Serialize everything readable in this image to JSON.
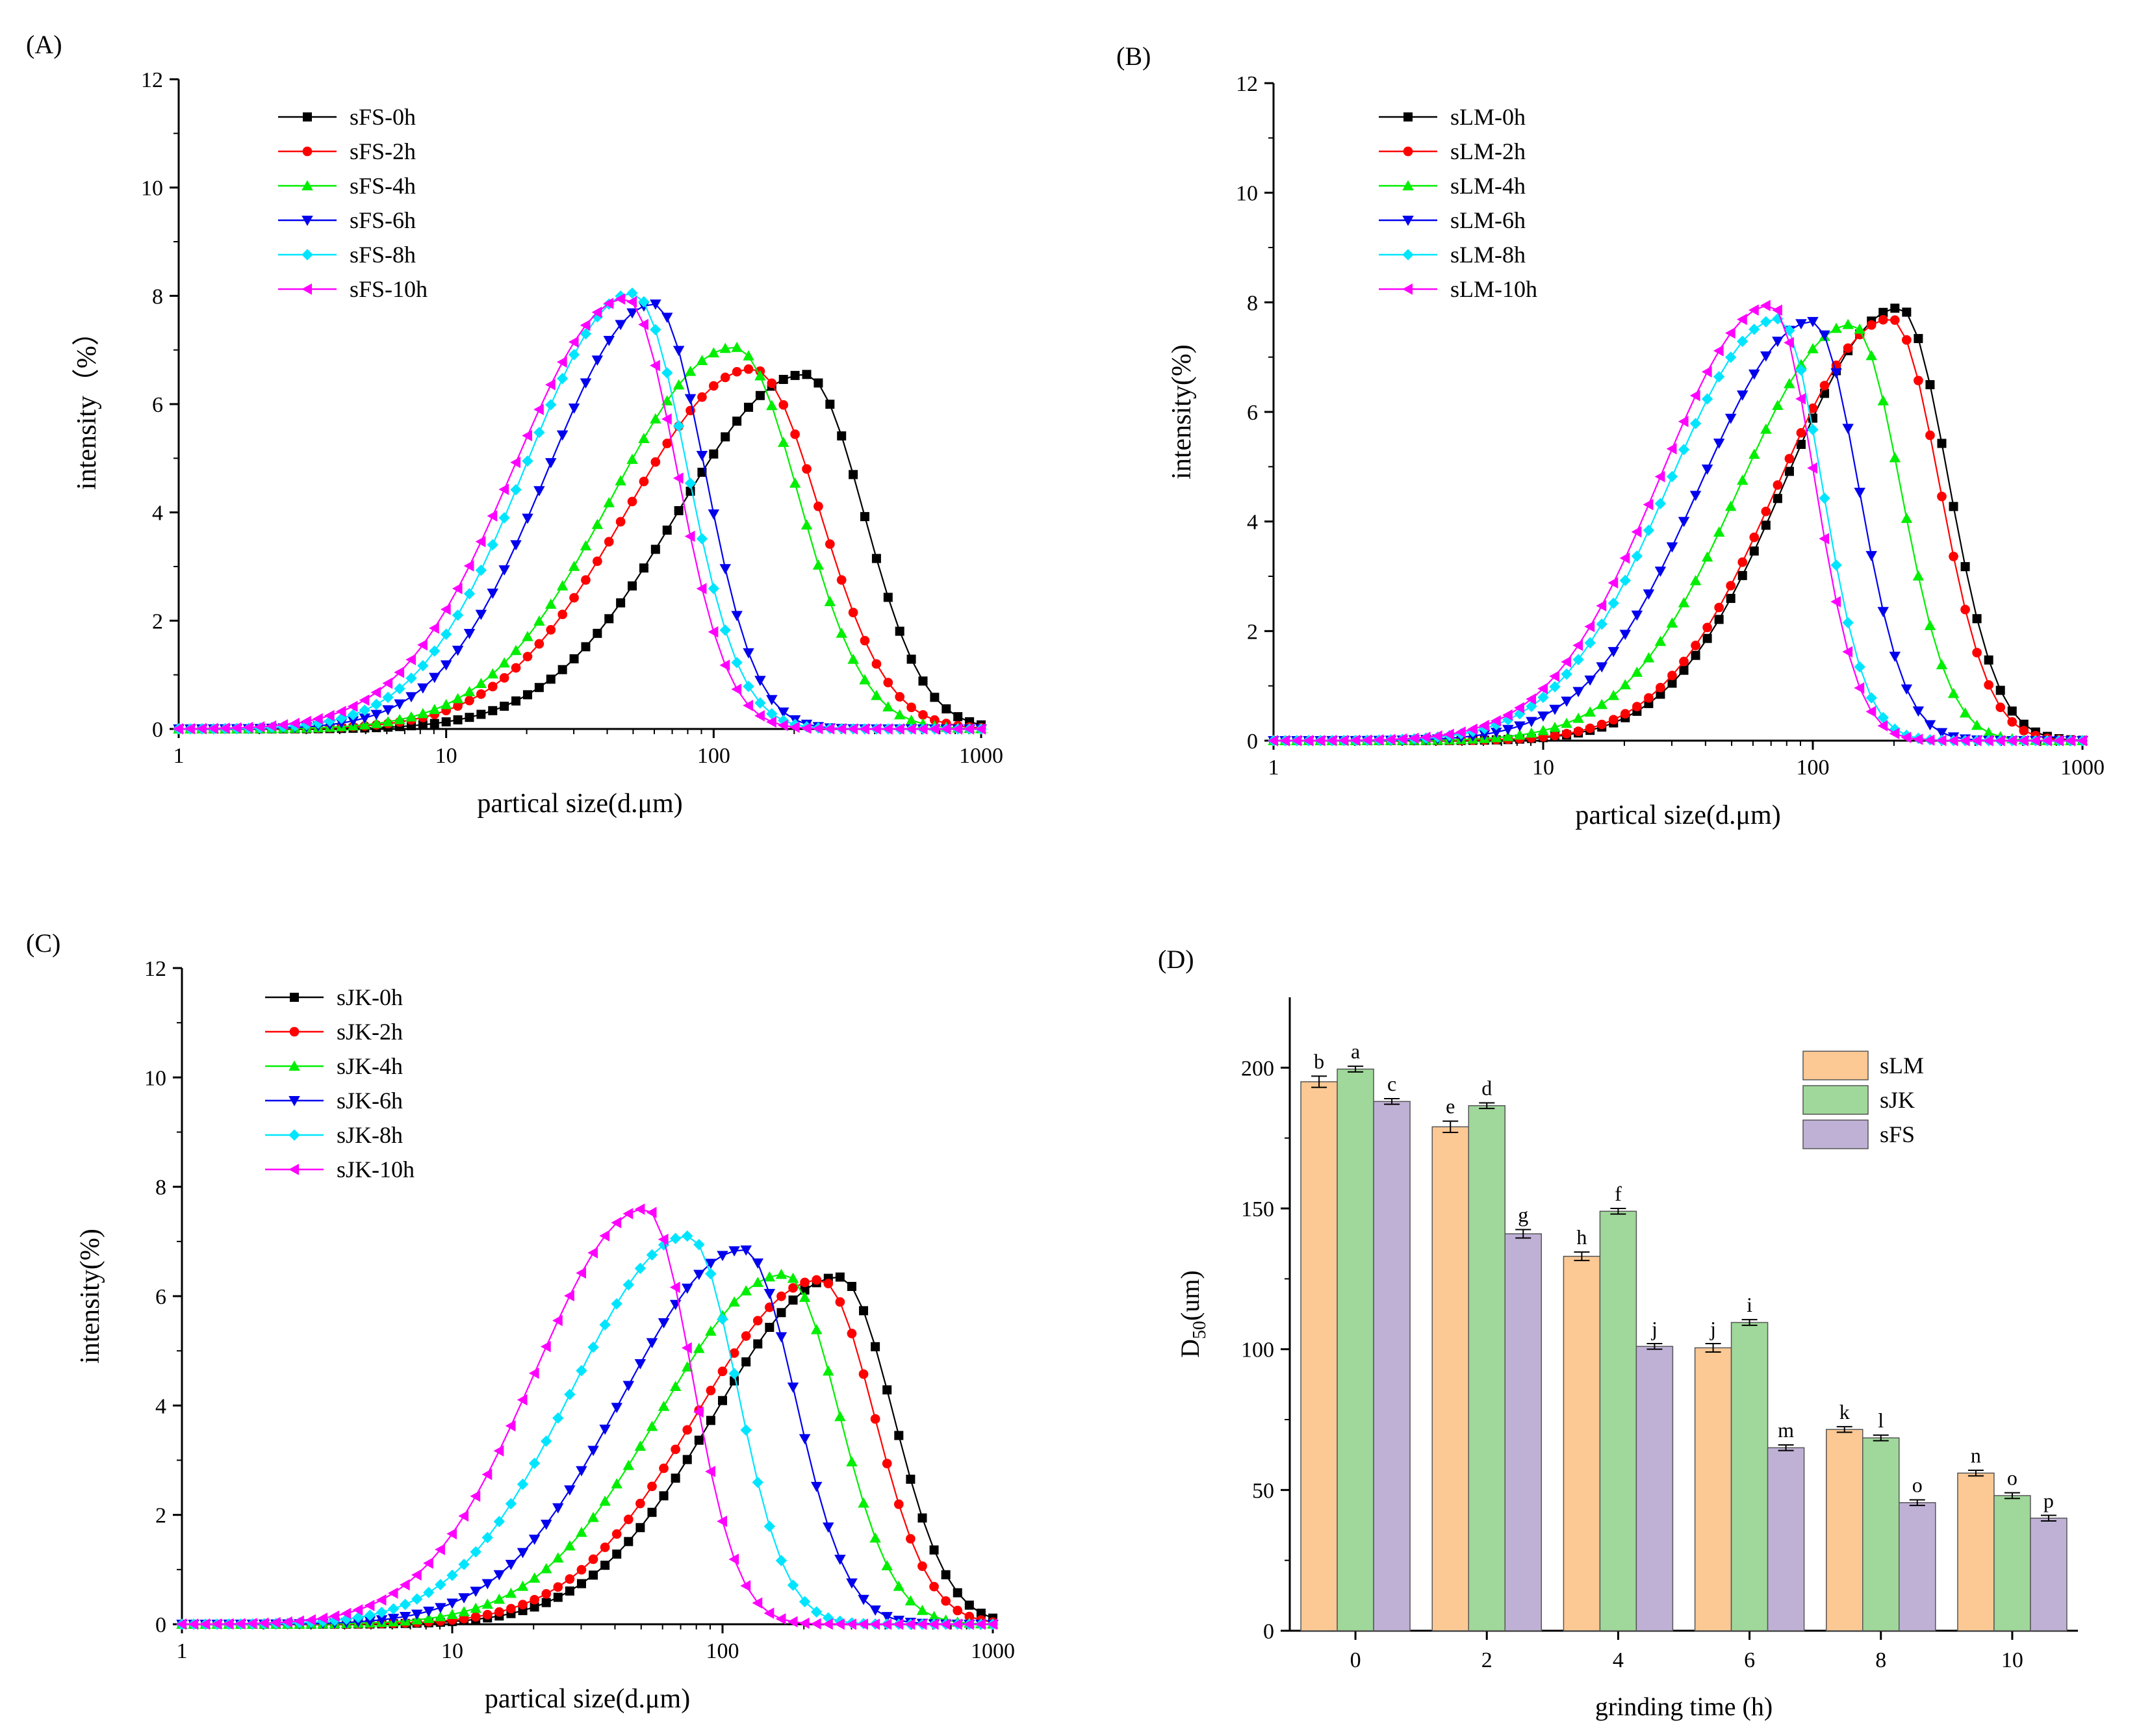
{
  "chart_data": [
    {
      "id": "A",
      "panel_label": "(A)",
      "type": "line",
      "xscale": "log",
      "xlim": [
        1,
        1000
      ],
      "ylim": [
        0,
        12
      ],
      "xticks": [
        1,
        10,
        100,
        1000
      ],
      "xtick_labels": [
        "1",
        "10",
        "100",
        "1000"
      ],
      "yticks": [
        0,
        2,
        4,
        6,
        8,
        10,
        12
      ],
      "ytick_labels": [
        "0",
        "2",
        "4",
        "6",
        "8",
        "10",
        "12"
      ],
      "xlabel": "partical size(d.μm)",
      "ylabel": "intensity（%）",
      "legend_position": "top-left",
      "series": [
        {
          "name": "sFS-0h",
          "color": "#000000",
          "marker": "square",
          "peak_x": 220,
          "peak_y": 6.55,
          "left_sigma": 0.48,
          "right_sigma": 0.22
        },
        {
          "name": "sFS-2h",
          "color": "#ff0000",
          "marker": "circle",
          "peak_x": 140,
          "peak_y": 6.65,
          "left_sigma": 0.47,
          "right_sigma": 0.25
        },
        {
          "name": "sFS-4h",
          "color": "#00ee00",
          "marker": "triangle-up",
          "peak_x": 120,
          "peak_y": 7.05,
          "left_sigma": 0.46,
          "right_sigma": 0.24
        },
        {
          "name": "sFS-6h",
          "color": "#0000ee",
          "marker": "triangle-down",
          "peak_x": 60,
          "peak_y": 7.85,
          "left_sigma": 0.4,
          "right_sigma": 0.19
        },
        {
          "name": "sFS-8h",
          "color": "#00e5ff",
          "marker": "diamond",
          "peak_x": 50,
          "peak_y": 8.05,
          "left_sigma": 0.4,
          "right_sigma": 0.2
        },
        {
          "name": "sFS-10h",
          "color": "#ff00ff",
          "marker": "triangle-left",
          "peak_x": 47,
          "peak_y": 7.95,
          "left_sigma": 0.42,
          "right_sigma": 0.19
        }
      ]
    },
    {
      "id": "B",
      "panel_label": "(B)",
      "type": "line",
      "xscale": "log",
      "xlim": [
        1,
        1000
      ],
      "ylim": [
        0,
        12
      ],
      "xticks": [
        1,
        10,
        100,
        1000
      ],
      "xtick_labels": [
        "1",
        "10",
        "100",
        "1000"
      ],
      "yticks": [
        0,
        2,
        4,
        6,
        8,
        10,
        12
      ],
      "ytick_labels": [
        "0",
        "2",
        "4",
        "6",
        "8",
        "10",
        "12"
      ],
      "xlabel": "partical size(d.μm)",
      "ylabel": "intensity(%)",
      "legend_position": "top-left",
      "series": [
        {
          "name": "sLM-0h",
          "color": "#000000",
          "marker": "square",
          "peak_x": 210,
          "peak_y": 7.9,
          "left_sigma": 0.42,
          "right_sigma": 0.18
        },
        {
          "name": "sLM-2h",
          "color": "#ff0000",
          "marker": "circle",
          "peak_x": 195,
          "peak_y": 7.7,
          "left_sigma": 0.42,
          "right_sigma": 0.18
        },
        {
          "name": "sLM-4h",
          "color": "#00ee00",
          "marker": "triangle-up",
          "peak_x": 140,
          "peak_y": 7.6,
          "left_sigma": 0.42,
          "right_sigma": 0.18
        },
        {
          "name": "sLM-6h",
          "color": "#0000ee",
          "marker": "triangle-down",
          "peak_x": 100,
          "peak_y": 7.65,
          "left_sigma": 0.42,
          "right_sigma": 0.17
        },
        {
          "name": "sLM-8h",
          "color": "#00e5ff",
          "marker": "diamond",
          "peak_x": 75,
          "peak_y": 7.7,
          "left_sigma": 0.41,
          "right_sigma": 0.16
        },
        {
          "name": "sLM-10h",
          "color": "#ff00ff",
          "marker": "triangle-left",
          "peak_x": 70,
          "peak_y": 7.95,
          "left_sigma": 0.41,
          "right_sigma": 0.16
        }
      ]
    },
    {
      "id": "C",
      "panel_label": "(C)",
      "type": "line",
      "xscale": "log",
      "xlim": [
        1,
        1000
      ],
      "ylim": [
        0,
        12
      ],
      "xticks": [
        1,
        10,
        100,
        1000
      ],
      "xtick_labels": [
        "1",
        "10",
        "100",
        "1000"
      ],
      "yticks": [
        0,
        2,
        4,
        6,
        8,
        10,
        12
      ],
      "ytick_labels": [
        "0",
        "2",
        "4",
        "6",
        "8",
        "10",
        "12"
      ],
      "xlabel": "partical size(d.μm)",
      "ylabel": "intensity(%)",
      "legend_position": "top-left",
      "series": [
        {
          "name": "sJK-0h",
          "color": "#000000",
          "marker": "square",
          "peak_x": 270,
          "peak_y": 6.35,
          "left_sigma": 0.46,
          "right_sigma": 0.2
        },
        {
          "name": "sJK-2h",
          "color": "#ff0000",
          "marker": "circle",
          "peak_x": 230,
          "peak_y": 6.3,
          "left_sigma": 0.46,
          "right_sigma": 0.2
        },
        {
          "name": "sJK-4h",
          "color": "#00ee00",
          "marker": "triangle-up",
          "peak_x": 170,
          "peak_y": 6.4,
          "left_sigma": 0.46,
          "right_sigma": 0.2
        },
        {
          "name": "sJK-6h",
          "color": "#0000ee",
          "marker": "triangle-down",
          "peak_x": 120,
          "peak_y": 6.85,
          "left_sigma": 0.45,
          "right_sigma": 0.19
        },
        {
          "name": "sJK-8h",
          "color": "#00e5ff",
          "marker": "diamond",
          "peak_x": 75,
          "peak_y": 7.1,
          "left_sigma": 0.43,
          "right_sigma": 0.18
        },
        {
          "name": "sJK-10h",
          "color": "#ff00ff",
          "marker": "triangle-left",
          "peak_x": 52,
          "peak_y": 7.6,
          "left_sigma": 0.41,
          "right_sigma": 0.17
        }
      ]
    },
    {
      "id": "D",
      "panel_label": "(D)",
      "type": "bar",
      "categories": [
        "0",
        "2",
        "4",
        "6",
        "8",
        "10"
      ],
      "xlabel": "grinding time (h)",
      "ylabel_main": "D",
      "ylabel_sub": "50",
      "ylabel_rest": "(um)",
      "ylim": [
        0,
        225
      ],
      "yticks": [
        0,
        50,
        100,
        150,
        200
      ],
      "ytick_labels": [
        "0",
        "50",
        "100",
        "150",
        "200"
      ],
      "legend_position": "top-right",
      "series": [
        {
          "name": "sLM",
          "color": "#fcc894",
          "values": [
            195,
            179,
            133,
            100.5,
            71.5,
            56
          ],
          "errors": [
            2,
            2,
            1.5,
            1.5,
            1,
            1
          ],
          "letters": [
            "b",
            "e",
            "h",
            "j",
            "k",
            "n"
          ]
        },
        {
          "name": "sJK",
          "color": "#9fd89a",
          "values": [
            199.5,
            186.5,
            149,
            109.5,
            68.5,
            48
          ],
          "errors": [
            1,
            1,
            1,
            1,
            1,
            1
          ],
          "letters": [
            "a",
            "d",
            "f",
            "i",
            "l",
            "o"
          ]
        },
        {
          "name": "sFS",
          "color": "#bfb1d6",
          "values": [
            188,
            141,
            101,
            65,
            45.5,
            40
          ],
          "errors": [
            1,
            1.5,
            1,
            1,
            1,
            1
          ],
          "letters": [
            "c",
            "g",
            "j",
            "m",
            "o",
            "p"
          ]
        }
      ]
    }
  ]
}
